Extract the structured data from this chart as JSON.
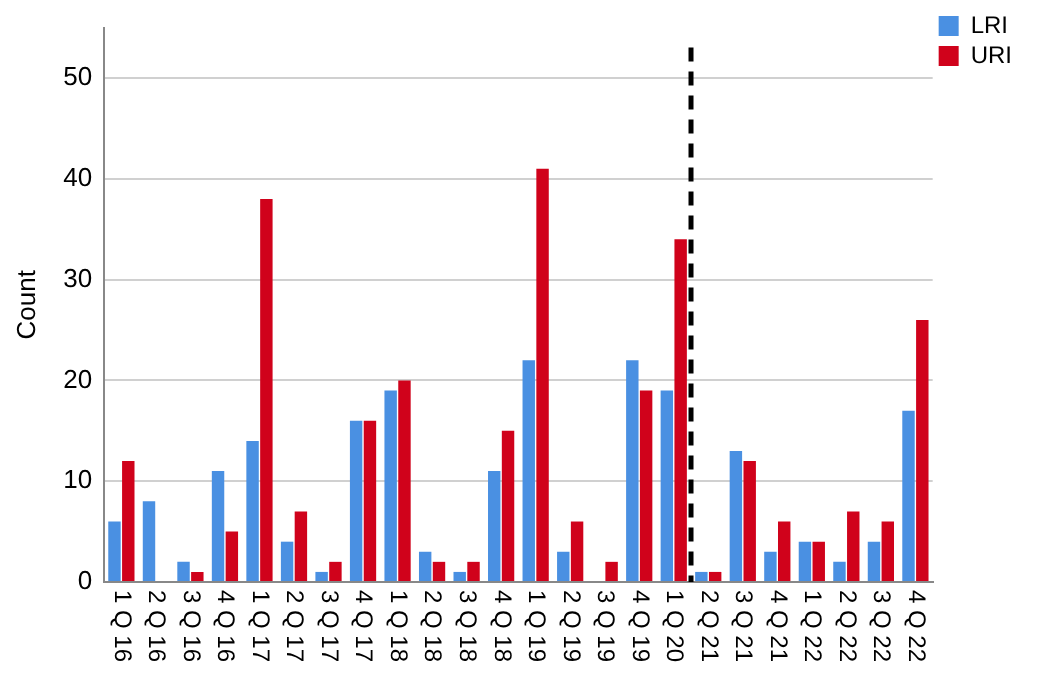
{
  "chart_data": {
    "type": "bar",
    "ylabel": "Count",
    "categories": [
      "1 Q 16",
      "2 Q 16",
      "3 Q 16",
      "4 Q 16",
      "1 Q 17",
      "2 Q 17",
      "3 Q 17",
      "4 Q 17",
      "1 Q 18",
      "2 Q 18",
      "3 Q 18",
      "4 Q 18",
      "1 Q 19",
      "2 Q 19",
      "3 Q 19",
      "4 Q 19",
      "1 Q 20",
      "2 Q 21",
      "3 Q 21",
      "4 Q 21",
      "1 Q 22",
      "2 Q 22",
      "3 Q 22",
      "4 Q 22"
    ],
    "series": [
      {
        "name": "LRI",
        "color": "#4a90e2",
        "values": [
          6,
          8,
          2,
          11,
          14,
          4,
          1,
          16,
          19,
          3,
          1,
          11,
          22,
          3,
          0,
          22,
          19,
          1,
          13,
          3,
          4,
          2,
          4,
          17
        ]
      },
      {
        "name": "URI",
        "color": "#d0021b",
        "values": [
          12,
          0,
          1,
          5,
          38,
          7,
          2,
          16,
          20,
          2,
          2,
          15,
          41,
          6,
          2,
          19,
          34,
          1,
          12,
          6,
          4,
          7,
          6,
          26
        ]
      }
    ],
    "ylim": [
      0,
      55
    ],
    "yticks": [
      0,
      10,
      20,
      30,
      40,
      50
    ],
    "grid": "y",
    "legend": "top right",
    "ref_lines": [
      {
        "axis": "x",
        "value": "1 Q 20",
        "color": "#000000",
        "line_style": "dashed"
      }
    ]
  }
}
